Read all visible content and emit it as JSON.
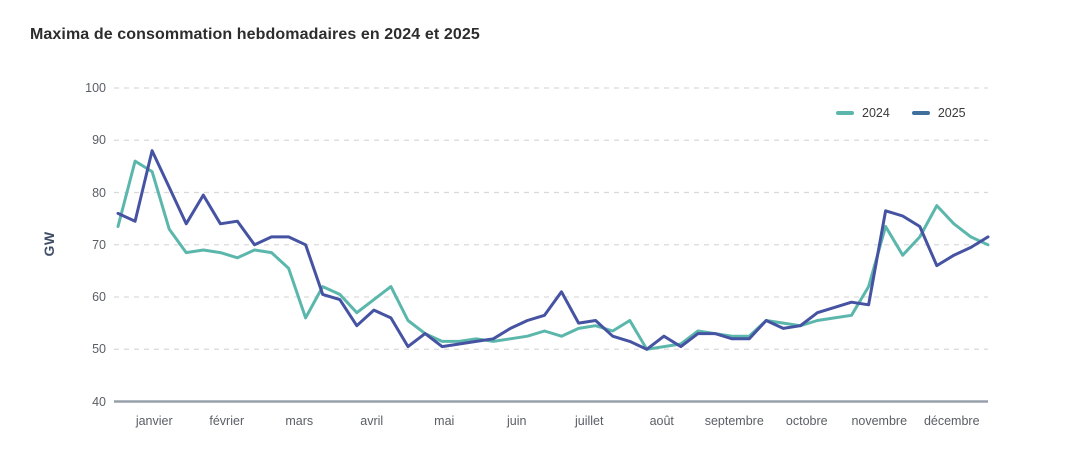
{
  "title": "Maxima de consommation hebdomadaires en 2024 et 2025",
  "legend": {
    "items": [
      {
        "label": "2024",
        "swatch_color": "#5BB7AB"
      },
      {
        "label": "2025",
        "swatch_color": "#3F6F9D"
      }
    ]
  },
  "colors": {
    "series_2024": "#5BB7AB",
    "series_2025": "#4553A2",
    "gridline": "#d9d9d9",
    "axis_line": "#97a0aa",
    "tick_text": "#5a5e66",
    "title_text": "#2d2d2d",
    "y_unit_text": "#3f4e68"
  },
  "chart_data": {
    "type": "line",
    "title": "Maxima de consommation hebdomadaires en 2024 et 2025",
    "xlabel": "",
    "ylabel": "GW",
    "ylim": [
      40,
      100
    ],
    "yticks": [
      40,
      50,
      60,
      70,
      80,
      90,
      100
    ],
    "grid": "horizontal, dashed, on ticks 50-100; solid baseline at 40",
    "legend_position": "top-right",
    "x_unit": "semaine (1-52)",
    "categories": [
      "janvier",
      "février",
      "mars",
      "avril",
      "mai",
      "juin",
      "juillet",
      "août",
      "septembre",
      "octobre",
      "novembre",
      "décembre"
    ],
    "series": [
      {
        "name": "2024",
        "color": "#5BB7AB",
        "legend_color": "#5BB7AB",
        "values": [
          73.5,
          86,
          84,
          73,
          68.5,
          69,
          68.5,
          67.5,
          69,
          68.5,
          65.5,
          56,
          62,
          60.5,
          57,
          59.5,
          62,
          55.5,
          53,
          51.5,
          51.5,
          52,
          51.5,
          52,
          52.5,
          53.5,
          52.5,
          54,
          54.5,
          53.5,
          55.5,
          50,
          50.5,
          51,
          53.5,
          53,
          52.5,
          52.5,
          55.5,
          55,
          54.5,
          55.5,
          56,
          56.5,
          62,
          73.5,
          68,
          71.5,
          77.5,
          74,
          71.5,
          70
        ]
      },
      {
        "name": "2025",
        "color": "#4553A2",
        "legend_color": "#3F6F9D",
        "values": [
          76,
          74.5,
          88,
          81,
          74,
          79.5,
          74,
          74.5,
          70,
          71.5,
          71.5,
          70,
          60.5,
          59.5,
          54.5,
          57.5,
          56,
          50.5,
          53,
          50.5,
          51,
          51.5,
          52,
          54,
          55.5,
          56.5,
          61,
          55,
          55.5,
          52.5,
          51.5,
          50,
          52.5,
          50.5,
          53,
          53,
          52,
          52,
          55.5,
          54,
          54.5,
          57,
          58,
          59,
          58.5,
          76.5,
          75.5,
          73.5,
          66,
          68,
          69.5,
          71.5
        ]
      }
    ]
  }
}
